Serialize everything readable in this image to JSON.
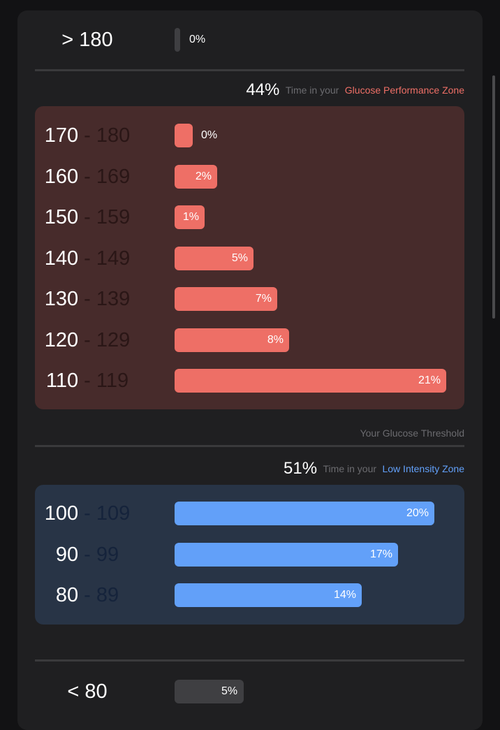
{
  "colors": {
    "perf_bar": "#ee6f66",
    "perf_panel": "#472b2b",
    "perf_range_dim": "#2a1616",
    "low_bar": "#62a0f9",
    "low_panel": "#283446",
    "low_range_dim": "#15233b",
    "gray_bar": "#3f3f42"
  },
  "above": {
    "range": "> 180",
    "pct": "0%",
    "value": 0
  },
  "performance_zone": {
    "percent": "44%",
    "text": "Time in your",
    "name": "Glucose Performance Zone",
    "rows": [
      {
        "low": "170",
        "high": "180",
        "pct": "0%",
        "value": 0
      },
      {
        "low": "160",
        "high": "169",
        "pct": "2%",
        "value": 2
      },
      {
        "low": "150",
        "high": "159",
        "pct": "1%",
        "value": 1
      },
      {
        "low": "140",
        "high": "149",
        "pct": "5%",
        "value": 5
      },
      {
        "low": "130",
        "high": "139",
        "pct": "7%",
        "value": 7
      },
      {
        "low": "120",
        "high": "129",
        "pct": "8%",
        "value": 8
      },
      {
        "low": "110",
        "high": "119",
        "pct": "21%",
        "value": 21
      }
    ]
  },
  "threshold_label": "Your Glucose Threshold",
  "low_zone": {
    "percent": "51%",
    "text": "Time in your",
    "name": "Low Intensity Zone",
    "rows": [
      {
        "low": "100",
        "high": "109",
        "pct": "20%",
        "value": 20
      },
      {
        "low": "90",
        "high": "99",
        "pct": "17%",
        "value": 17
      },
      {
        "low": "80",
        "high": "89",
        "pct": "14%",
        "value": 14
      }
    ]
  },
  "below": {
    "range": "< 80",
    "pct": "5%",
    "value": 5
  }
}
